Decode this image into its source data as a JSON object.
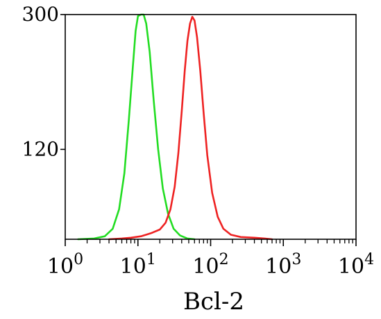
{
  "chart_data": {
    "type": "line",
    "title": "",
    "xlabel": "Bcl-2",
    "ylabel": "",
    "x_scale": "log",
    "xlim": [
      1,
      10000
    ],
    "ylim": [
      0,
      300
    ],
    "x_ticks": [
      {
        "base": "10",
        "exp": "0",
        "value": 1
      },
      {
        "base": "10",
        "exp": "1",
        "value": 10
      },
      {
        "base": "10",
        "exp": "2",
        "value": 100
      },
      {
        "base": "10",
        "exp": "3",
        "value": 1000
      },
      {
        "base": "10",
        "exp": "4",
        "value": 10000
      }
    ],
    "y_ticks": [
      {
        "label": "120",
        "value": 120
      },
      {
        "label": "300",
        "value": 300
      }
    ],
    "grid": false,
    "legend": "none",
    "series": [
      {
        "color": "#22dd22",
        "points": [
          [
            1.5,
            0
          ],
          [
            2.5,
            1
          ],
          [
            3.5,
            4
          ],
          [
            4.5,
            14
          ],
          [
            5.5,
            40
          ],
          [
            6.5,
            88
          ],
          [
            7.5,
            160
          ],
          [
            8.5,
            230
          ],
          [
            9.3,
            278
          ],
          [
            10.0,
            298
          ],
          [
            11.0,
            300
          ],
          [
            12.0,
            300
          ],
          [
            13.0,
            288
          ],
          [
            14.5,
            250
          ],
          [
            16.5,
            185
          ],
          [
            19.0,
            120
          ],
          [
            22.0,
            68
          ],
          [
            26.0,
            34
          ],
          [
            31.0,
            14
          ],
          [
            38.0,
            5
          ],
          [
            48.0,
            1
          ],
          [
            60.0,
            0
          ]
        ]
      },
      {
        "color": "#ee2222",
        "points": [
          [
            4.0,
            0
          ],
          [
            6.0,
            1
          ],
          [
            8.0,
            2
          ],
          [
            11.0,
            4
          ],
          [
            15.0,
            8
          ],
          [
            20.0,
            13
          ],
          [
            24.0,
            22
          ],
          [
            28.0,
            40
          ],
          [
            32.0,
            70
          ],
          [
            36.0,
            115
          ],
          [
            40.0,
            170
          ],
          [
            44.0,
            225
          ],
          [
            48.0,
            265
          ],
          [
            52.0,
            288
          ],
          [
            56.0,
            297
          ],
          [
            60.0,
            292
          ],
          [
            65.0,
            270
          ],
          [
            72.0,
            225
          ],
          [
            80.0,
            170
          ],
          [
            90.0,
            112
          ],
          [
            105.0,
            62
          ],
          [
            125.0,
            30
          ],
          [
            150.0,
            14
          ],
          [
            190.0,
            6
          ],
          [
            260.0,
            3
          ],
          [
            400.0,
            2
          ],
          [
            550.0,
            1
          ],
          [
            700.0,
            0
          ]
        ]
      }
    ]
  }
}
